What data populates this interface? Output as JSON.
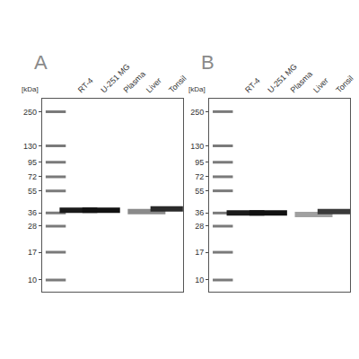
{
  "chart_data": [
    {
      "type": "blot",
      "title": "A",
      "ylabel": "[kDa]",
      "categories": [
        null,
        "RT-4",
        "U-251 MG",
        "Plasma",
        "Liver",
        "Tonsil"
      ],
      "values": [
        null,
        38,
        38,
        null,
        37,
        39
      ],
      "colors": [
        null,
        "#1a1a1a",
        "#111111",
        null,
        "#8a8a8a",
        "#2a2a2a"
      ],
      "ylim": [
        8,
        320
      ],
      "yticks": [
        250,
        130,
        95,
        72,
        55,
        36,
        28,
        17,
        10
      ],
      "log": "y",
      "grid": false
    },
    {
      "type": "blot",
      "title": "B",
      "ylabel": "[kDa]",
      "categories": [
        null,
        "RT-4",
        "U-251 MG",
        "Plasma",
        "Liver",
        "Tonsil"
      ],
      "values": [
        null,
        36,
        36,
        null,
        35,
        37
      ],
      "colors": [
        null,
        "#1a1a1a",
        "#111111",
        null,
        "#a0a0a0",
        "#3a3a3a"
      ],
      "ylim": [
        8,
        320
      ],
      "yticks": [
        250,
        130,
        95,
        72,
        55,
        36,
        28,
        17,
        10
      ],
      "log": "y",
      "grid": false
    }
  ]
}
